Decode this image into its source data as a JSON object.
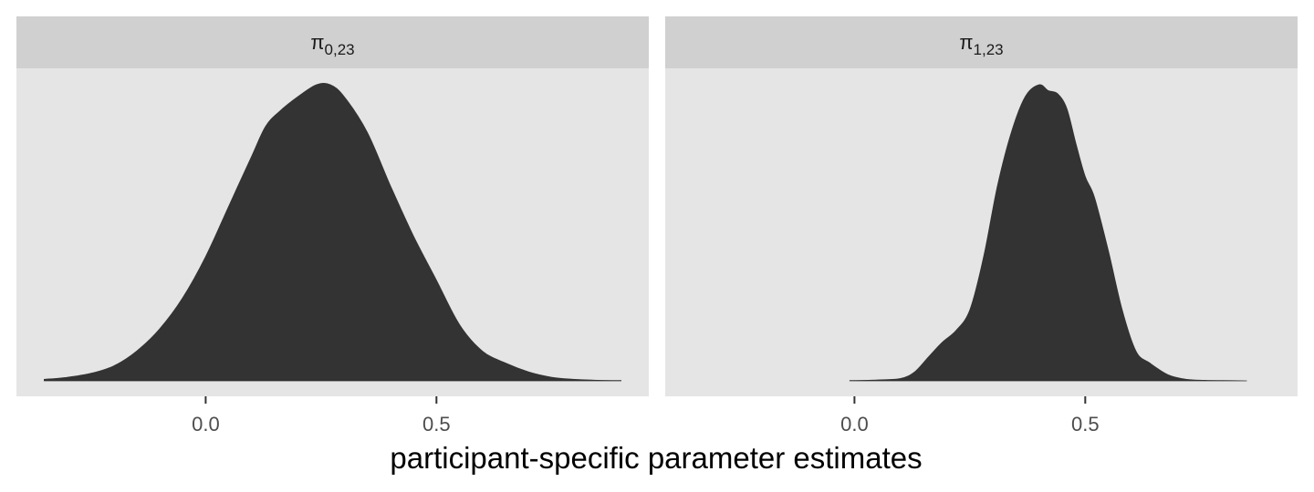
{
  "chart_data": {
    "type": "area",
    "subtype": "density",
    "xlabel": "participant-specific parameter estimates",
    "ylabel": "",
    "y_ticks_shown": false,
    "grid": false,
    "colors": {
      "panel_background": "#e5e5e5",
      "strip_background": "#d0d0d0",
      "fill": "#333333",
      "tick": "#333333",
      "tick_label": "#4d4d4d"
    },
    "panels": [
      {
        "strip": {
          "base": "π",
          "subscript": "0,23"
        },
        "xlim": [
          -0.41,
          0.96
        ],
        "x_ticks": [
          0.0,
          0.5
        ],
        "x_tick_labels": [
          "0.0",
          "0.5"
        ],
        "ylim": [
          0,
          1.05
        ],
        "density": {
          "x": [
            -0.35,
            -0.3,
            -0.25,
            -0.2,
            -0.15,
            -0.1,
            -0.05,
            0.0,
            0.05,
            0.1,
            0.13,
            0.16,
            0.2,
            0.24,
            0.27,
            0.3,
            0.35,
            0.4,
            0.45,
            0.5,
            0.55,
            0.6,
            0.65,
            0.7,
            0.75,
            0.8,
            0.85,
            0.9
          ],
          "y": [
            0.005,
            0.012,
            0.025,
            0.05,
            0.1,
            0.175,
            0.28,
            0.42,
            0.59,
            0.76,
            0.86,
            0.91,
            0.96,
            1.0,
            1.0,
            0.96,
            0.84,
            0.66,
            0.49,
            0.34,
            0.19,
            0.1,
            0.06,
            0.03,
            0.012,
            0.005,
            0.002,
            0.001
          ]
        }
      },
      {
        "strip": {
          "base": "π",
          "subscript": "1,23"
        },
        "xlim": [
          -0.41,
          0.96
        ],
        "x_ticks": [
          0.0,
          0.5
        ],
        "x_tick_labels": [
          "0.0",
          "0.5"
        ],
        "ylim": [
          0,
          1.05
        ],
        "density": {
          "x": [
            -0.01,
            0.05,
            0.1,
            0.13,
            0.16,
            0.19,
            0.22,
            0.25,
            0.28,
            0.31,
            0.34,
            0.37,
            0.4,
            0.42,
            0.44,
            0.46,
            0.48,
            0.5,
            0.52,
            0.55,
            0.58,
            0.61,
            0.64,
            0.68,
            0.72,
            0.76,
            0.8,
            0.85
          ],
          "y": [
            0.001,
            0.003,
            0.008,
            0.03,
            0.08,
            0.13,
            0.17,
            0.24,
            0.42,
            0.66,
            0.84,
            0.96,
            1.0,
            0.98,
            0.97,
            0.92,
            0.8,
            0.69,
            0.62,
            0.44,
            0.24,
            0.1,
            0.06,
            0.02,
            0.005,
            0.002,
            0.001,
            0.0
          ]
        }
      }
    ]
  }
}
